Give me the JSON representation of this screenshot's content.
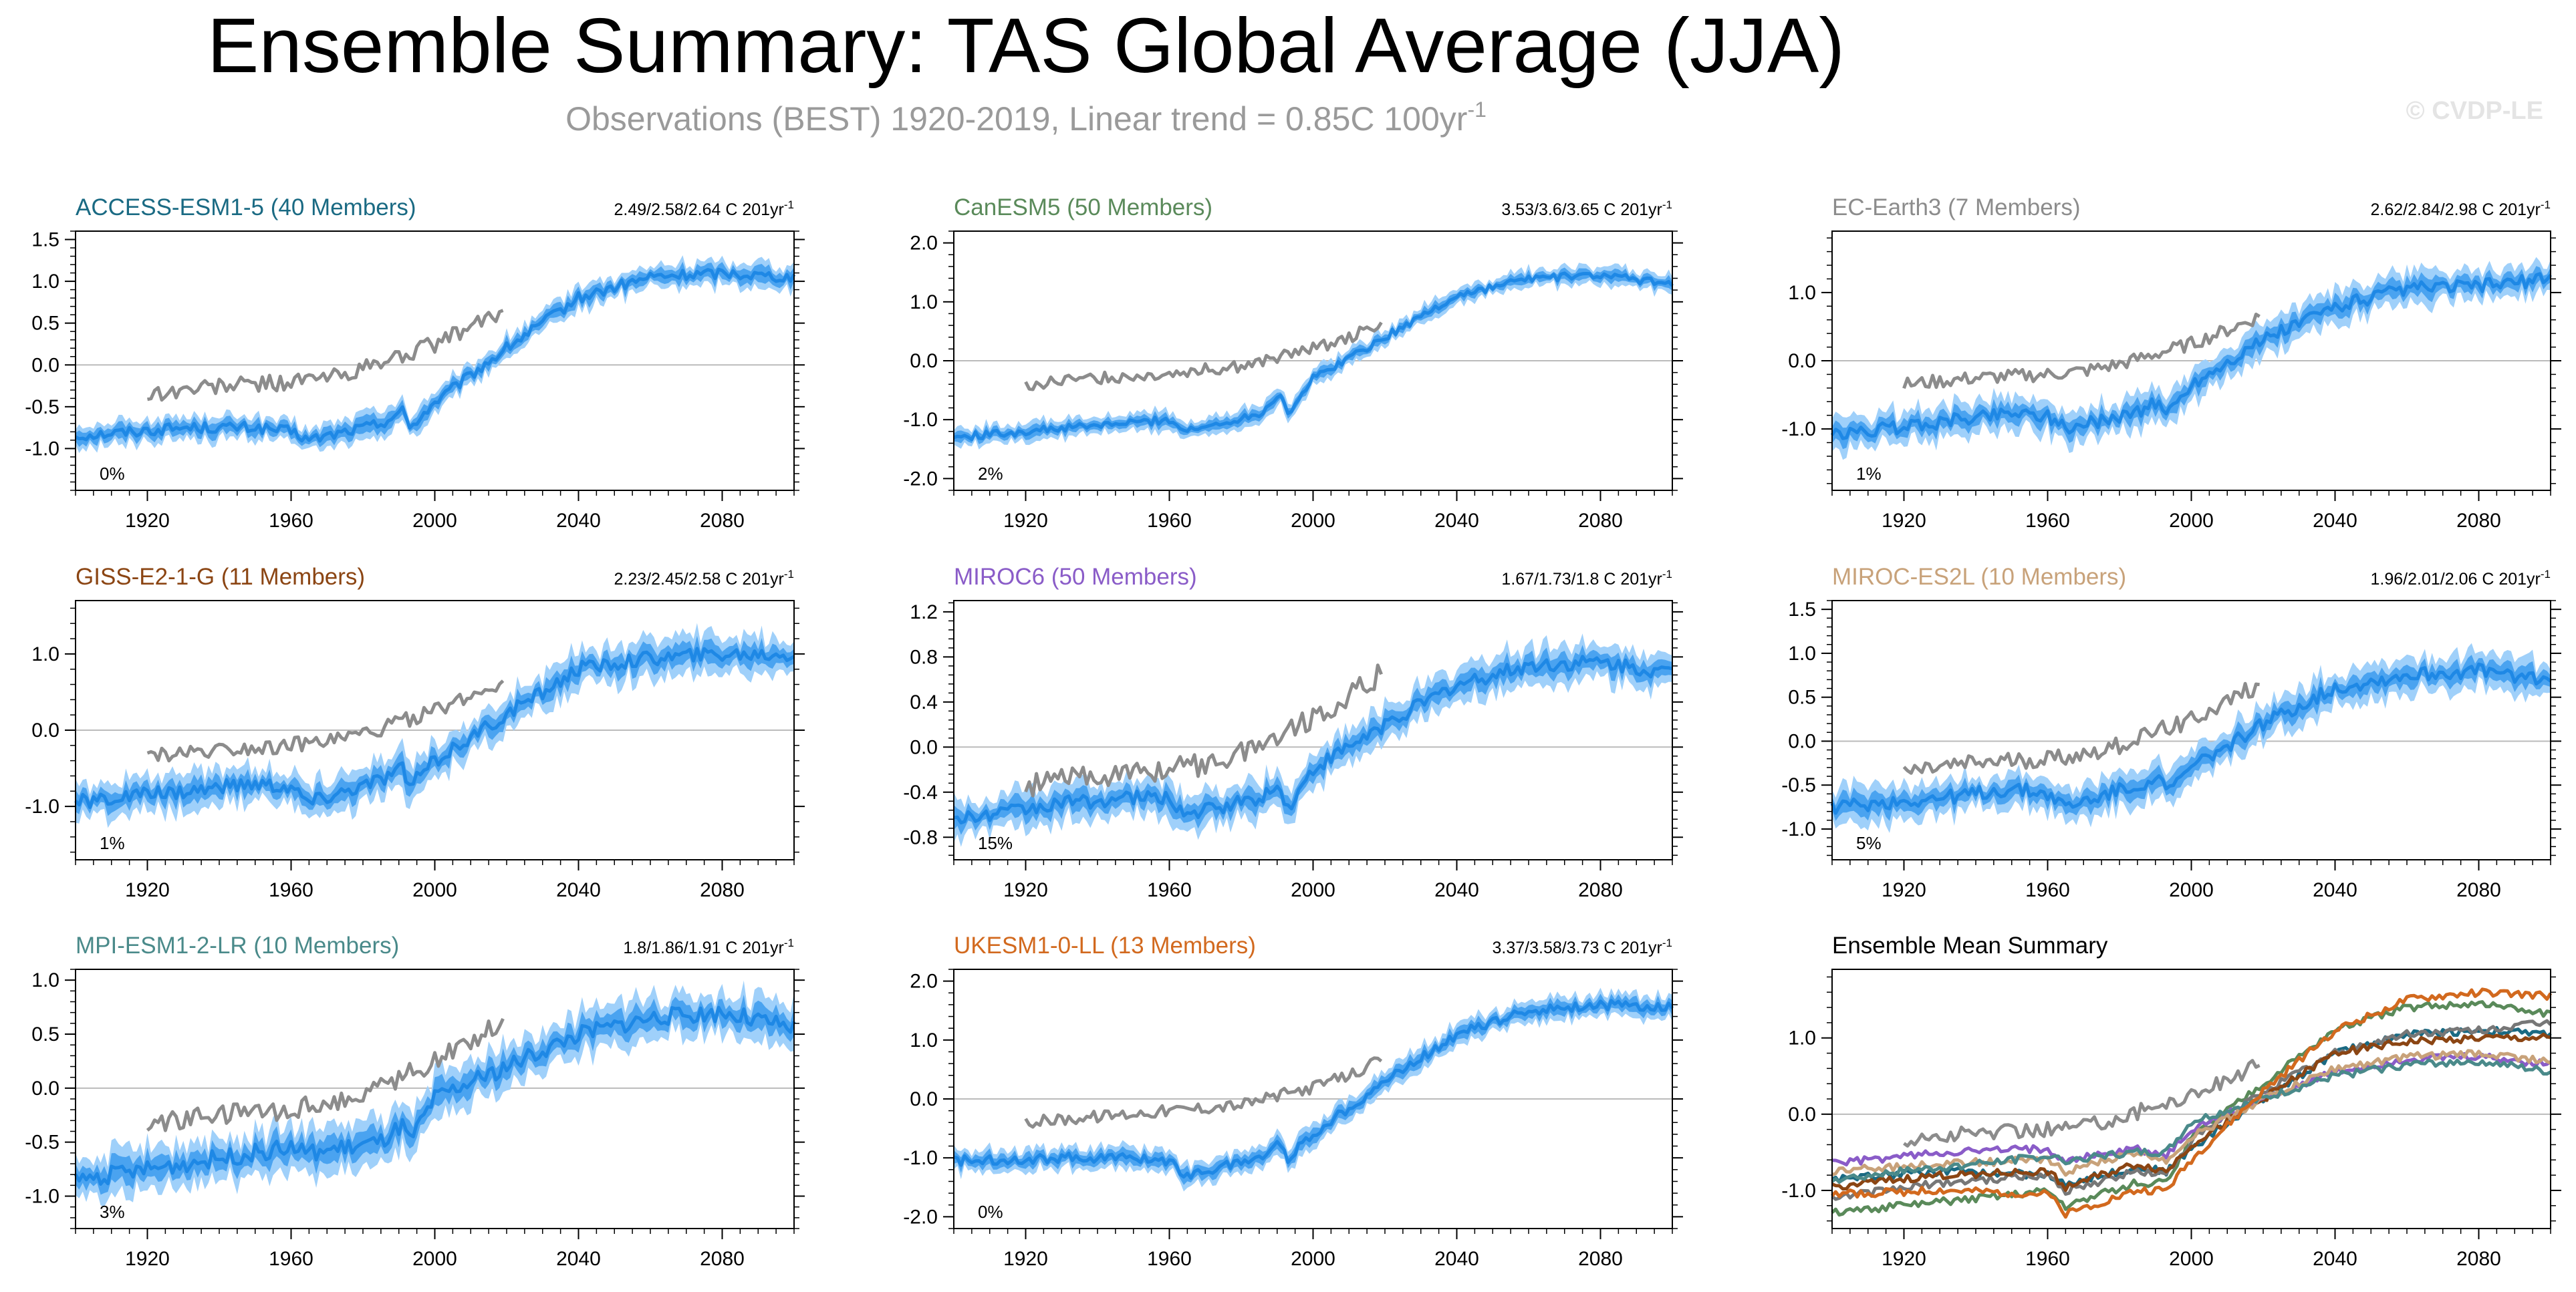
{
  "header": {
    "title": "Ensemble Summary: TAS Global Average (JJA)",
    "subtitle": "Observations (BEST) 1920-2019, Linear trend = 0.85C 100yr",
    "subtitle_sup": "-1",
    "copyright": "© CVDP-LE"
  },
  "colors": {
    "ens_mean": "#1e88e5",
    "ens_inner": "#4aa3f0",
    "ens_outer": "#9fd0fa",
    "obs": "#8c8c8c",
    "zero_line": "#bbbbbb"
  },
  "chart_data": [
    {
      "type": "line",
      "model": "ACCESS-ESM1-5 (40 Members)",
      "color": "#1a6a83",
      "trend_text": "2.49/2.58/2.64 C 201yr",
      "trend_sup": "-1",
      "percent_label": "0%",
      "ylim": [
        -1.5,
        1.6
      ],
      "yticks": [
        -1.0,
        -0.5,
        0.0,
        0.5,
        1.0,
        1.5
      ],
      "yticklabels": [
        "-1.0",
        "-0.5",
        "0.0",
        "0.5",
        "1.0",
        "1.5"
      ],
      "xlim": [
        1900,
        2100
      ],
      "xticks": [
        1920,
        1960,
        2000,
        2040,
        2080
      ],
      "ens_x": [
        1900,
        1930,
        1950,
        1960,
        1965,
        1985,
        1991,
        1993,
        2000,
        2020,
        2040,
        2060,
        2080,
        2100
      ],
      "ens_y": [
        -0.85,
        -0.75,
        -0.75,
        -0.8,
        -0.9,
        -0.7,
        -0.55,
        -0.75,
        -0.45,
        0.2,
        0.8,
        1.05,
        1.1,
        1.05
      ],
      "spread_inner": 0.08,
      "spread_outer": 0.14,
      "obs_x": [
        1920,
        1940,
        1960,
        1970,
        1980,
        1990,
        2000,
        2010,
        2019
      ],
      "obs_y": [
        -0.35,
        -0.25,
        -0.2,
        -0.15,
        -0.05,
        0.1,
        0.25,
        0.45,
        0.65
      ]
    },
    {
      "type": "line",
      "model": "CanESM5 (50 Members)",
      "color": "#5a8a5a",
      "trend_text": "3.53/3.6/3.65 C 201yr",
      "trend_sup": "-1",
      "percent_label": "2%",
      "ylim": [
        -2.2,
        2.2
      ],
      "yticks": [
        -2.0,
        -1.0,
        0.0,
        1.0,
        2.0
      ],
      "yticklabels": [
        "-2.0",
        "-1.0",
        "0.0",
        "1.0",
        "2.0"
      ],
      "xlim": [
        1900,
        2100
      ],
      "xticks": [
        1920,
        1960,
        2000,
        2040,
        2080
      ],
      "ens_x": [
        1900,
        1930,
        1950,
        1960,
        1965,
        1985,
        1991,
        1993,
        2000,
        2020,
        2040,
        2060,
        2080,
        2100
      ],
      "ens_y": [
        -1.3,
        -1.15,
        -1.05,
        -1.0,
        -1.2,
        -0.9,
        -0.55,
        -0.9,
        -0.3,
        0.4,
        1.1,
        1.4,
        1.45,
        1.3
      ],
      "spread_inner": 0.08,
      "spread_outer": 0.15,
      "obs_x": [
        1920,
        1940,
        1960,
        1970,
        1980,
        1990,
        2000,
        2010,
        2019
      ],
      "obs_y": [
        -0.4,
        -0.3,
        -0.2,
        -0.15,
        -0.1,
        0.05,
        0.2,
        0.4,
        0.65
      ]
    },
    {
      "type": "line",
      "model": "EC-Earth3 (7 Members)",
      "color": "#8c8c8c",
      "trend_text": "2.62/2.84/2.98 C 201yr",
      "trend_sup": "-1",
      "percent_label": "1%",
      "ylim": [
        -1.9,
        1.9
      ],
      "yticks": [
        -1.0,
        0.0,
        1.0
      ],
      "yticklabels": [
        "-1.0",
        "0.0",
        "1.0"
      ],
      "xlim": [
        1900,
        2100
      ],
      "xticks": [
        1920,
        1960,
        2000,
        2040,
        2080
      ],
      "ens_x": [
        1900,
        1930,
        1950,
        1960,
        1965,
        1985,
        1991,
        1993,
        2000,
        2020,
        2040,
        2060,
        2080,
        2100
      ],
      "ens_y": [
        -1.1,
        -0.9,
        -0.75,
        -0.8,
        -1.0,
        -0.75,
        -0.6,
        -0.8,
        -0.35,
        0.3,
        0.8,
        1.05,
        1.1,
        1.2
      ],
      "spread_inner": 0.12,
      "spread_outer": 0.24,
      "obs_x": [
        1920,
        1940,
        1960,
        1970,
        1980,
        1990,
        2000,
        2010,
        2019
      ],
      "obs_y": [
        -0.35,
        -0.25,
        -0.2,
        -0.15,
        -0.05,
        0.1,
        0.25,
        0.45,
        0.65
      ]
    },
    {
      "type": "line",
      "model": "GISS-E2-1-G (11 Members)",
      "color": "#8b4513",
      "trend_text": "2.23/2.45/2.58 C 201yr",
      "trend_sup": "-1",
      "percent_label": "1%",
      "ylim": [
        -1.7,
        1.7
      ],
      "yticks": [
        -1.0,
        0.0,
        1.0
      ],
      "yticklabels": [
        "-1.0",
        "0.0",
        "1.0"
      ],
      "xlim": [
        1900,
        2100
      ],
      "xticks": [
        1920,
        1960,
        2000,
        2040,
        2080
      ],
      "ens_x": [
        1900,
        1930,
        1950,
        1960,
        1965,
        1985,
        1991,
        1993,
        2000,
        2020,
        2040,
        2060,
        2080,
        2100
      ],
      "ens_y": [
        -0.95,
        -0.8,
        -0.7,
        -0.75,
        -0.95,
        -0.65,
        -0.5,
        -0.75,
        -0.4,
        0.2,
        0.8,
        0.95,
        1.0,
        1.0
      ],
      "spread_inner": 0.12,
      "spread_outer": 0.24,
      "obs_x": [
        1920,
        1940,
        1960,
        1970,
        1980,
        1990,
        2000,
        2010,
        2019
      ],
      "obs_y": [
        -0.35,
        -0.25,
        -0.2,
        -0.15,
        -0.05,
        0.1,
        0.25,
        0.45,
        0.65
      ]
    },
    {
      "type": "line",
      "model": "MIROC6 (50 Members)",
      "color": "#8a5cc8",
      "trend_text": "1.67/1.73/1.8 C 201yr",
      "trend_sup": "-1",
      "percent_label": "15%",
      "ylim": [
        -1.0,
        1.3
      ],
      "yticks": [
        -0.8,
        -0.4,
        0.0,
        0.4,
        0.8,
        1.2
      ],
      "yticklabels": [
        "-0.8",
        "-0.4",
        "0.0",
        "0.4",
        "0.8",
        "1.2"
      ],
      "xlim": [
        1900,
        2100
      ],
      "xticks": [
        1920,
        1960,
        2000,
        2040,
        2080
      ],
      "ens_x": [
        1900,
        1930,
        1950,
        1960,
        1965,
        1985,
        1991,
        1993,
        2000,
        2020,
        2040,
        2060,
        2080,
        2100
      ],
      "ens_y": [
        -0.65,
        -0.5,
        -0.45,
        -0.45,
        -0.6,
        -0.45,
        -0.35,
        -0.55,
        -0.2,
        0.2,
        0.55,
        0.72,
        0.75,
        0.65
      ],
      "spread_inner": 0.08,
      "spread_outer": 0.16,
      "obs_x": [
        1920,
        1940,
        1960,
        1970,
        1980,
        1990,
        2000,
        2010,
        2019
      ],
      "obs_y": [
        -0.35,
        -0.25,
        -0.2,
        -0.15,
        -0.05,
        0.1,
        0.25,
        0.45,
        0.65
      ]
    },
    {
      "type": "line",
      "model": "MIROC-ES2L (10 Members)",
      "color": "#c8a27a",
      "trend_text": "1.96/2.01/2.06 C 201yr",
      "trend_sup": "-1",
      "percent_label": "5%",
      "ylim": [
        -1.35,
        1.6
      ],
      "yticks": [
        -1.0,
        -0.5,
        0.0,
        0.5,
        1.0,
        1.5
      ],
      "yticklabels": [
        "-1.0",
        "-0.5",
        "0.0",
        "0.5",
        "1.0",
        "1.5"
      ],
      "xlim": [
        1900,
        2100
      ],
      "xticks": [
        1920,
        1960,
        2000,
        2040,
        2080
      ],
      "ens_x": [
        1900,
        1930,
        1950,
        1960,
        1965,
        1985,
        1991,
        1993,
        2000,
        2020,
        2040,
        2060,
        2080,
        2100
      ],
      "ens_y": [
        -0.75,
        -0.65,
        -0.55,
        -0.6,
        -0.75,
        -0.5,
        -0.4,
        -0.6,
        -0.3,
        0.2,
        0.6,
        0.75,
        0.8,
        0.7
      ],
      "spread_inner": 0.1,
      "spread_outer": 0.2,
      "obs_x": [
        1920,
        1940,
        1960,
        1970,
        1980,
        1990,
        2000,
        2010,
        2019
      ],
      "obs_y": [
        -0.35,
        -0.25,
        -0.2,
        -0.15,
        -0.05,
        0.1,
        0.25,
        0.45,
        0.65
      ]
    },
    {
      "type": "line",
      "model": "MPI-ESM1-2-LR (10 Members)",
      "color": "#4a8a8a",
      "trend_text": "1.8/1.86/1.91 C 201yr",
      "trend_sup": "-1",
      "percent_label": "3%",
      "ylim": [
        -1.3,
        1.1
      ],
      "yticks": [
        -1.0,
        -0.5,
        0.0,
        0.5,
        1.0
      ],
      "yticklabels": [
        "-1.0",
        "-0.5",
        "0.0",
        "0.5",
        "1.0"
      ],
      "xlim": [
        1900,
        2100
      ],
      "xticks": [
        1920,
        1960,
        2000,
        2040,
        2080
      ],
      "ens_x": [
        1900,
        1930,
        1950,
        1960,
        1965,
        1985,
        1991,
        1993,
        2000,
        2020,
        2040,
        2060,
        2080,
        2100
      ],
      "ens_y": [
        -0.85,
        -0.7,
        -0.6,
        -0.55,
        -0.6,
        -0.5,
        -0.35,
        -0.5,
        -0.1,
        0.2,
        0.5,
        0.65,
        0.7,
        0.55
      ],
      "spread_inner": 0.1,
      "spread_outer": 0.2,
      "obs_x": [
        1920,
        1940,
        1960,
        1970,
        1980,
        1990,
        2000,
        2010,
        2019
      ],
      "obs_y": [
        -0.35,
        -0.25,
        -0.2,
        -0.15,
        -0.05,
        0.1,
        0.25,
        0.45,
        0.65
      ]
    },
    {
      "type": "line",
      "model": "UKESM1-0-LL (13 Members)",
      "color": "#d2691e",
      "trend_text": "3.37/3.58/3.73 C 201yr",
      "trend_sup": "-1",
      "percent_label": "0%",
      "ylim": [
        -2.2,
        2.2
      ],
      "yticks": [
        -2.0,
        -1.0,
        0.0,
        1.0,
        2.0
      ],
      "yticklabels": [
        "-2.0",
        "-1.0",
        "0.0",
        "1.0",
        "2.0"
      ],
      "xlim": [
        1900,
        2100
      ],
      "xticks": [
        1920,
        1960,
        2000,
        2040,
        2080
      ],
      "ens_x": [
        1900,
        1930,
        1950,
        1960,
        1965,
        1985,
        1991,
        1993,
        2000,
        2020,
        2040,
        2060,
        2080,
        2100
      ],
      "ens_y": [
        -1.05,
        -1.0,
        -1.0,
        -1.05,
        -1.3,
        -1.0,
        -0.75,
        -1.0,
        -0.6,
        0.3,
        1.1,
        1.5,
        1.6,
        1.55
      ],
      "spread_inner": 0.1,
      "spread_outer": 0.18,
      "obs_x": [
        1920,
        1940,
        1960,
        1970,
        1980,
        1990,
        2000,
        2010,
        2019
      ],
      "obs_y": [
        -0.4,
        -0.3,
        -0.2,
        -0.15,
        -0.1,
        0.05,
        0.2,
        0.4,
        0.65
      ]
    },
    {
      "type": "line",
      "model": "Ensemble Mean Summary",
      "color": "#000000",
      "ylim": [
        -1.5,
        1.9
      ],
      "yticks": [
        -1.0,
        0.0,
        1.0
      ],
      "yticklabels": [
        "-1.0",
        "0.0",
        "1.0"
      ],
      "xlim": [
        1900,
        2100
      ],
      "xticks": [
        1920,
        1960,
        2000,
        2040,
        2080
      ],
      "obs_x": [
        1920,
        1940,
        1960,
        1970,
        1980,
        1990,
        2000,
        2010,
        2019
      ],
      "obs_y": [
        -0.35,
        -0.25,
        -0.2,
        -0.15,
        -0.05,
        0.1,
        0.25,
        0.45,
        0.65
      ],
      "series": [
        {
          "name": "ACCESS-ESM1-5",
          "color": "#1a6a83",
          "x": [
            1900,
            1930,
            1960,
            1965,
            1985,
            1993,
            2000,
            2020,
            2040,
            2060,
            2080,
            2100
          ],
          "values": [
            -0.85,
            -0.75,
            -0.8,
            -0.9,
            -0.7,
            -0.75,
            -0.45,
            0.2,
            0.8,
            1.05,
            1.1,
            1.05
          ]
        },
        {
          "name": "CanESM5",
          "color": "#5a8a5a",
          "x": [
            1900,
            1930,
            1960,
            1965,
            1985,
            1993,
            2000,
            2020,
            2040,
            2060,
            2080,
            2100
          ],
          "values": [
            -1.3,
            -1.15,
            -1.0,
            -1.2,
            -0.9,
            -0.9,
            -0.3,
            0.4,
            1.1,
            1.4,
            1.45,
            1.3
          ]
        },
        {
          "name": "EC-Earth3",
          "color": "#777777",
          "x": [
            1900,
            1930,
            1960,
            1965,
            1985,
            1993,
            2000,
            2020,
            2040,
            2060,
            2080,
            2100
          ],
          "values": [
            -1.1,
            -0.9,
            -0.8,
            -1.0,
            -0.75,
            -0.8,
            -0.35,
            0.3,
            0.8,
            1.05,
            1.1,
            1.2
          ]
        },
        {
          "name": "GISS-E2-1-G",
          "color": "#8b4513",
          "x": [
            1900,
            1930,
            1960,
            1965,
            1985,
            1993,
            2000,
            2020,
            2040,
            2060,
            2080,
            2100
          ],
          "values": [
            -0.95,
            -0.8,
            -0.75,
            -0.95,
            -0.65,
            -0.75,
            -0.4,
            0.2,
            0.8,
            0.95,
            1.0,
            1.0
          ]
        },
        {
          "name": "MIROC6",
          "color": "#8a5cc8",
          "x": [
            1900,
            1930,
            1960,
            1965,
            1985,
            1993,
            2000,
            2020,
            2040,
            2060,
            2080,
            2100
          ],
          "values": [
            -0.65,
            -0.5,
            -0.45,
            -0.6,
            -0.45,
            -0.55,
            -0.2,
            0.2,
            0.55,
            0.72,
            0.75,
            0.65
          ]
        },
        {
          "name": "MIROC-ES2L",
          "color": "#c8a27a",
          "x": [
            1900,
            1930,
            1960,
            1965,
            1985,
            1993,
            2000,
            2020,
            2040,
            2060,
            2080,
            2100
          ],
          "values": [
            -0.75,
            -0.65,
            -0.6,
            -0.75,
            -0.5,
            -0.6,
            -0.3,
            0.2,
            0.6,
            0.75,
            0.8,
            0.7
          ]
        },
        {
          "name": "MPI-ESM1-2-LR",
          "color": "#4a8a8a",
          "x": [
            1900,
            1930,
            1960,
            1965,
            1985,
            1993,
            2000,
            2020,
            2040,
            2060,
            2080,
            2100
          ],
          "values": [
            -0.85,
            -0.7,
            -0.55,
            -0.6,
            -0.5,
            -0.5,
            -0.1,
            0.2,
            0.5,
            0.65,
            0.7,
            0.55
          ]
        },
        {
          "name": "UKESM1-0-LL",
          "color": "#d2691e",
          "x": [
            1900,
            1930,
            1960,
            1965,
            1985,
            1993,
            2000,
            2020,
            2040,
            2060,
            2080,
            2100
          ],
          "values": [
            -1.05,
            -1.0,
            -1.05,
            -1.3,
            -1.0,
            -1.0,
            -0.6,
            0.3,
            1.1,
            1.5,
            1.6,
            1.55
          ]
        }
      ]
    }
  ]
}
